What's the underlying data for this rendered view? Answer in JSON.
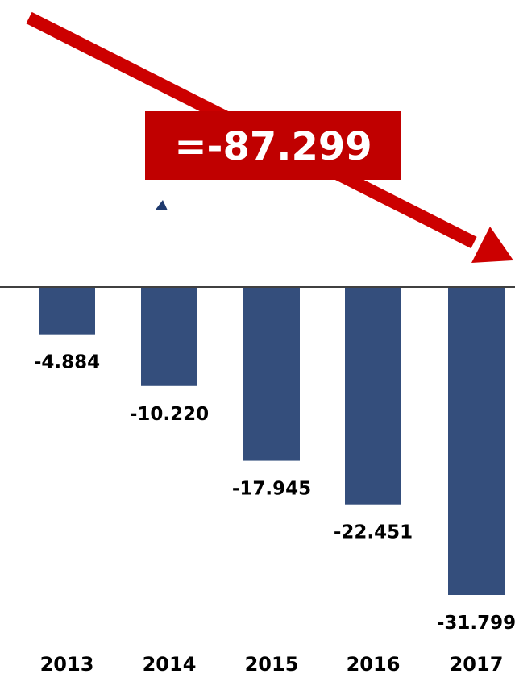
{
  "chart_data": {
    "type": "bar",
    "categories": [
      "2013",
      "2014",
      "2015",
      "2016",
      "2017"
    ],
    "values": [
      -4.884,
      -10.22,
      -17.945,
      -22.451,
      -31.799
    ],
    "value_labels": [
      "-4.884",
      "-10.220",
      "-17.945",
      "-22.451",
      "-31.799"
    ],
    "total_label": "=-87.299",
    "title": "",
    "xlabel": "",
    "ylabel": "",
    "ylim": [
      -31.799,
      0
    ],
    "grid": false,
    "legend": "none"
  },
  "colors": {
    "bar": "#344e7c",
    "arrow": "#cc0000",
    "callout_bg": "#c00000",
    "callout_text": "#ffffff",
    "baseline": "#000000",
    "label_text": "#000000",
    "marker": "#1f3a6e"
  }
}
